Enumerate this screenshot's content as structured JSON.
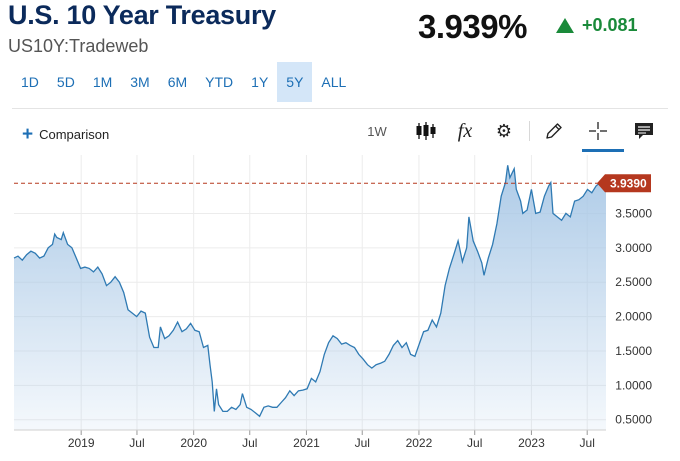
{
  "header": {
    "title": "U.S. 10 Year Treasury",
    "symbol": "US10Y:Tradeweb",
    "price": "3.939%",
    "change": "+0.081",
    "change_color": "#1a8a3a"
  },
  "ranges": {
    "items": [
      "1D",
      "5D",
      "1M",
      "3M",
      "6M",
      "YTD",
      "1Y",
      "5Y",
      "ALL"
    ],
    "active": "5Y"
  },
  "toolbar": {
    "comparison_label": "Comparison",
    "interval_label": "1W",
    "fx_label": "fx",
    "icons": [
      "candlestick-icon",
      "function-icon",
      "gear-icon",
      "pencil-icon",
      "crosshair-icon",
      "comment-icon"
    ]
  },
  "chart_data": {
    "type": "area",
    "title": "",
    "xlabel": "",
    "ylabel": "",
    "x_ticks": [
      "2019",
      "Jul",
      "2020",
      "Jul",
      "2021",
      "Jul",
      "2022",
      "Jul",
      "2023",
      "Jul"
    ],
    "y_ticks": [
      "0.5000",
      "1.0000",
      "1.5000",
      "2.0000",
      "2.5000",
      "3.0000",
      "3.5000"
    ],
    "ylim": [
      0.35,
      4.35
    ],
    "x_range": [
      "2018-05-28",
      "2023-08-31"
    ],
    "last_value": 3.939,
    "last_value_label": "3.9390",
    "line_color": "#2f7ab3",
    "fill_color": "#a9c8e6",
    "marker_color": "#b5381f",
    "grid": true,
    "points": [
      [
        "2018-05-28",
        2.85
      ],
      [
        "2018-06-10",
        2.88
      ],
      [
        "2018-06-24",
        2.82
      ],
      [
        "2018-07-08",
        2.9
      ],
      [
        "2018-07-22",
        2.95
      ],
      [
        "2018-08-05",
        2.92
      ],
      [
        "2018-08-19",
        2.85
      ],
      [
        "2018-09-02",
        2.88
      ],
      [
        "2018-09-16",
        3.0
      ],
      [
        "2018-09-30",
        3.05
      ],
      [
        "2018-10-07",
        3.2
      ],
      [
        "2018-10-14",
        3.15
      ],
      [
        "2018-10-28",
        3.12
      ],
      [
        "2018-11-04",
        3.22
      ],
      [
        "2018-11-18",
        3.05
      ],
      [
        "2018-12-02",
        3.0
      ],
      [
        "2018-12-16",
        2.85
      ],
      [
        "2018-12-30",
        2.7
      ],
      [
        "2019-01-13",
        2.72
      ],
      [
        "2019-01-27",
        2.7
      ],
      [
        "2019-02-10",
        2.65
      ],
      [
        "2019-02-24",
        2.72
      ],
      [
        "2019-03-10",
        2.62
      ],
      [
        "2019-03-24",
        2.45
      ],
      [
        "2019-04-07",
        2.5
      ],
      [
        "2019-04-21",
        2.58
      ],
      [
        "2019-05-05",
        2.5
      ],
      [
        "2019-05-19",
        2.35
      ],
      [
        "2019-06-02",
        2.1
      ],
      [
        "2019-06-16",
        2.05
      ],
      [
        "2019-06-30",
        2.0
      ],
      [
        "2019-07-14",
        2.08
      ],
      [
        "2019-07-28",
        2.05
      ],
      [
        "2019-08-11",
        1.7
      ],
      [
        "2019-08-25",
        1.55
      ],
      [
        "2019-09-08",
        1.55
      ],
      [
        "2019-09-15",
        1.85
      ],
      [
        "2019-09-29",
        1.68
      ],
      [
        "2019-10-13",
        1.72
      ],
      [
        "2019-10-27",
        1.8
      ],
      [
        "2019-11-10",
        1.92
      ],
      [
        "2019-11-24",
        1.78
      ],
      [
        "2019-12-08",
        1.82
      ],
      [
        "2019-12-22",
        1.9
      ],
      [
        "2020-01-05",
        1.8
      ],
      [
        "2020-01-19",
        1.78
      ],
      [
        "2020-02-02",
        1.55
      ],
      [
        "2020-02-16",
        1.58
      ],
      [
        "2020-02-23",
        1.3
      ],
      [
        "2020-03-01",
        1.05
      ],
      [
        "2020-03-08",
        0.62
      ],
      [
        "2020-03-15",
        0.95
      ],
      [
        "2020-03-22",
        0.72
      ],
      [
        "2020-04-05",
        0.62
      ],
      [
        "2020-04-19",
        0.62
      ],
      [
        "2020-05-03",
        0.68
      ],
      [
        "2020-05-17",
        0.65
      ],
      [
        "2020-05-31",
        0.72
      ],
      [
        "2020-06-07",
        0.88
      ],
      [
        "2020-06-21",
        0.68
      ],
      [
        "2020-07-05",
        0.65
      ],
      [
        "2020-07-19",
        0.6
      ],
      [
        "2020-08-02",
        0.55
      ],
      [
        "2020-08-16",
        0.68
      ],
      [
        "2020-08-30",
        0.7
      ],
      [
        "2020-09-13",
        0.68
      ],
      [
        "2020-09-27",
        0.68
      ],
      [
        "2020-10-11",
        0.75
      ],
      [
        "2020-10-25",
        0.82
      ],
      [
        "2020-11-08",
        0.92
      ],
      [
        "2020-11-22",
        0.85
      ],
      [
        "2020-12-06",
        0.92
      ],
      [
        "2020-12-20",
        0.93
      ],
      [
        "2021-01-03",
        0.95
      ],
      [
        "2021-01-17",
        1.1
      ],
      [
        "2021-01-31",
        1.05
      ],
      [
        "2021-02-14",
        1.2
      ],
      [
        "2021-02-28",
        1.45
      ],
      [
        "2021-03-14",
        1.62
      ],
      [
        "2021-03-28",
        1.72
      ],
      [
        "2021-04-11",
        1.68
      ],
      [
        "2021-04-25",
        1.6
      ],
      [
        "2021-05-09",
        1.62
      ],
      [
        "2021-05-23",
        1.58
      ],
      [
        "2021-06-06",
        1.55
      ],
      [
        "2021-06-20",
        1.45
      ],
      [
        "2021-07-04",
        1.38
      ],
      [
        "2021-07-18",
        1.3
      ],
      [
        "2021-08-01",
        1.25
      ],
      [
        "2021-08-15",
        1.3
      ],
      [
        "2021-08-29",
        1.32
      ],
      [
        "2021-09-12",
        1.35
      ],
      [
        "2021-09-26",
        1.45
      ],
      [
        "2021-10-10",
        1.58
      ],
      [
        "2021-10-24",
        1.65
      ],
      [
        "2021-11-07",
        1.55
      ],
      [
        "2021-11-21",
        1.62
      ],
      [
        "2021-12-05",
        1.45
      ],
      [
        "2021-12-19",
        1.42
      ],
      [
        "2022-01-02",
        1.6
      ],
      [
        "2022-01-16",
        1.78
      ],
      [
        "2022-01-30",
        1.8
      ],
      [
        "2022-02-13",
        1.95
      ],
      [
        "2022-02-27",
        1.85
      ],
      [
        "2022-03-13",
        2.05
      ],
      [
        "2022-03-27",
        2.45
      ],
      [
        "2022-04-10",
        2.7
      ],
      [
        "2022-04-24",
        2.9
      ],
      [
        "2022-05-08",
        3.1
      ],
      [
        "2022-05-22",
        2.8
      ],
      [
        "2022-06-05",
        3.0
      ],
      [
        "2022-06-12",
        3.45
      ],
      [
        "2022-06-26",
        3.1
      ],
      [
        "2022-07-10",
        2.95
      ],
      [
        "2022-07-24",
        2.78
      ],
      [
        "2022-07-31",
        2.6
      ],
      [
        "2022-08-14",
        2.85
      ],
      [
        "2022-08-28",
        3.05
      ],
      [
        "2022-09-11",
        3.35
      ],
      [
        "2022-09-25",
        3.75
      ],
      [
        "2022-10-09",
        3.95
      ],
      [
        "2022-10-16",
        4.2
      ],
      [
        "2022-10-23",
        4.02
      ],
      [
        "2022-11-06",
        4.15
      ],
      [
        "2022-11-13",
        3.85
      ],
      [
        "2022-11-27",
        3.68
      ],
      [
        "2022-12-04",
        3.5
      ],
      [
        "2022-12-18",
        3.55
      ],
      [
        "2023-01-01",
        3.85
      ],
      [
        "2023-01-15",
        3.5
      ],
      [
        "2023-01-29",
        3.52
      ],
      [
        "2023-02-12",
        3.75
      ],
      [
        "2023-02-26",
        3.9
      ],
      [
        "2023-03-05",
        3.95
      ],
      [
        "2023-03-12",
        3.5
      ],
      [
        "2023-03-26",
        3.45
      ],
      [
        "2023-04-09",
        3.4
      ],
      [
        "2023-04-23",
        3.5
      ],
      [
        "2023-05-07",
        3.45
      ],
      [
        "2023-05-21",
        3.68
      ],
      [
        "2023-06-04",
        3.7
      ],
      [
        "2023-06-18",
        3.75
      ],
      [
        "2023-07-02",
        3.85
      ],
      [
        "2023-07-16",
        3.8
      ],
      [
        "2023-07-30",
        3.9
      ],
      [
        "2023-08-13",
        3.95
      ],
      [
        "2023-08-27",
        3.85
      ],
      [
        "2023-08-31",
        3.939
      ]
    ]
  }
}
